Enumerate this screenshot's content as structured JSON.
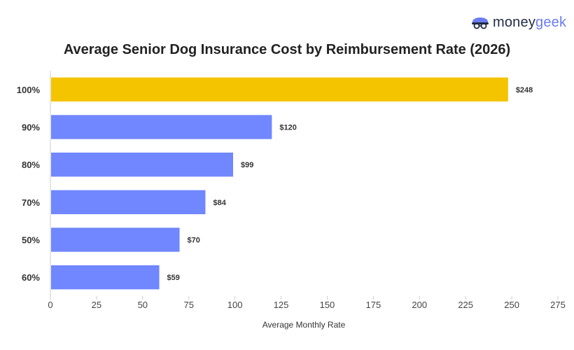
{
  "logo": {
    "part1": "money",
    "part2": "geek"
  },
  "colors": {
    "highlight": "#F5C400",
    "default": "#7087FF",
    "axis": "#cccccc"
  },
  "chart_data": {
    "type": "bar",
    "orientation": "horizontal",
    "title": "Average Senior Dog Insurance Cost by Reimbursement Rate (2026)",
    "xlabel": "Average Monthly Rate",
    "ylabel": "",
    "xlim": [
      0,
      275
    ],
    "xticks": [
      0,
      25,
      50,
      75,
      100,
      125,
      150,
      175,
      200,
      225,
      250,
      275
    ],
    "categories": [
      "100%",
      "90%",
      "80%",
      "70%",
      "50%",
      "60%"
    ],
    "values": [
      248,
      120,
      99,
      84,
      70,
      59
    ],
    "value_labels": [
      "$248",
      "$120",
      "$99",
      "$84",
      "$70",
      "$59"
    ],
    "highlight_index": 0,
    "grid": false
  }
}
